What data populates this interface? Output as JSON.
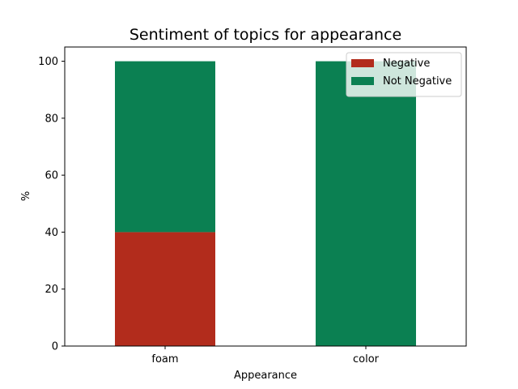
{
  "chart_data": {
    "type": "bar",
    "stacked": true,
    "title": "Sentiment of topics for appearance",
    "xlabel": "Appearance",
    "ylabel": "%",
    "categories": [
      "foam",
      "color"
    ],
    "series": [
      {
        "name": "Negative",
        "values": [
          40,
          0
        ],
        "color": "#b22c1c"
      },
      {
        "name": "Not Negative",
        "values": [
          60,
          100
        ],
        "color": "#0b8052"
      }
    ],
    "ylim": [
      0,
      105
    ],
    "yticks": [
      0,
      20,
      40,
      60,
      80,
      100
    ],
    "grid": false,
    "legend_position": "top-right"
  }
}
